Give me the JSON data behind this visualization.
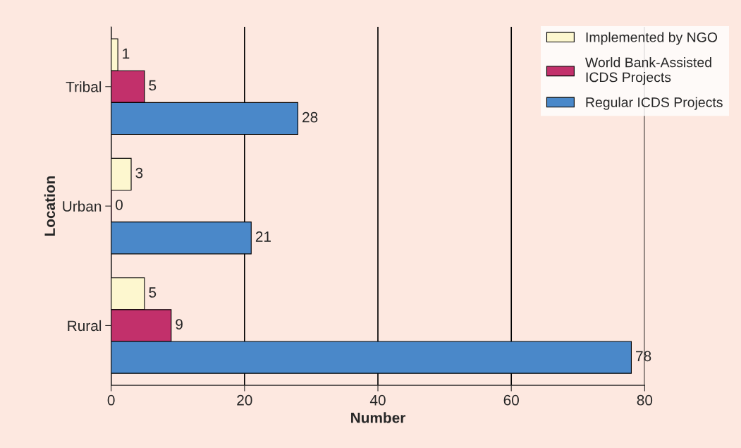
{
  "chart_data": {
    "type": "bar",
    "orientation": "horizontal",
    "xlabel": "Number",
    "ylabel": "Location",
    "categories": [
      "Tribal",
      "Urban",
      "Rural"
    ],
    "series": [
      {
        "name": "Implemented by NGO",
        "color": "#fdf7cf",
        "values": [
          1,
          3,
          5
        ]
      },
      {
        "name": "World Bank-Assisted\nICDS Projects",
        "color": "#c2306b",
        "values": [
          5,
          0,
          9
        ]
      },
      {
        "name": "Regular ICDS Projects",
        "color": "#4a88c9",
        "values": [
          28,
          21,
          78
        ]
      }
    ],
    "xlim": [
      0,
      80
    ],
    "xticks": [
      0,
      20,
      40,
      60,
      80
    ],
    "grid": "x",
    "legend": "top right",
    "data_labels": true
  }
}
